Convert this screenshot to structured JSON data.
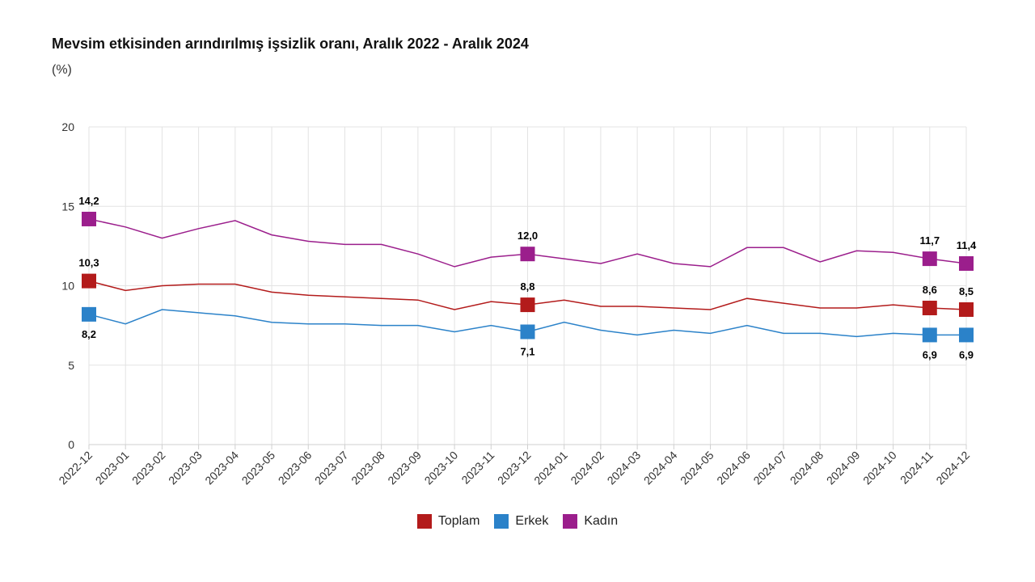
{
  "chart_data": {
    "type": "line",
    "title": "Mevsim etkisinden arındırılmış işsizlik oranı, Aralık 2022 - Aralık 2024",
    "subtitle": "(%)",
    "xlabel": "",
    "ylabel": "",
    "ylim": [
      0,
      20
    ],
    "yticks": [
      0,
      5,
      10,
      15,
      20
    ],
    "grid": true,
    "legend_placement": "bottom-center",
    "categories": [
      "2022-12",
      "2023-01",
      "2023-02",
      "2023-03",
      "2023-04",
      "2023-05",
      "2023-06",
      "2023-07",
      "2023-08",
      "2023-09",
      "2023-10",
      "2023-11",
      "2023-12",
      "2024-01",
      "2024-02",
      "2024-03",
      "2024-04",
      "2024-05",
      "2024-06",
      "2024-07",
      "2024-08",
      "2024-09",
      "2024-10",
      "2024-11",
      "2024-12"
    ],
    "series": [
      {
        "name": "Toplam",
        "color": "#b31b1b",
        "values": [
          10.3,
          9.7,
          10.0,
          10.1,
          10.1,
          9.6,
          9.4,
          9.3,
          9.2,
          9.1,
          8.5,
          9.0,
          8.8,
          9.1,
          8.7,
          8.7,
          8.6,
          8.5,
          9.2,
          8.9,
          8.6,
          8.6,
          8.8,
          8.6,
          8.5
        ],
        "labels": [
          {
            "i": 0,
            "text": "10,3"
          },
          {
            "i": 12,
            "text": "8,8"
          },
          {
            "i": 23,
            "text": "8,6"
          },
          {
            "i": 24,
            "text": "8,5"
          }
        ],
        "label_pos": "above"
      },
      {
        "name": "Erkek",
        "color": "#2b82c9",
        "values": [
          8.2,
          7.6,
          8.5,
          8.3,
          8.1,
          7.7,
          7.6,
          7.6,
          7.5,
          7.5,
          7.1,
          7.5,
          7.1,
          7.7,
          7.2,
          6.9,
          7.2,
          7.0,
          7.5,
          7.0,
          7.0,
          6.8,
          7.0,
          6.9,
          6.9
        ],
        "labels": [
          {
            "i": 0,
            "text": "8,2"
          },
          {
            "i": 12,
            "text": "7,1"
          },
          {
            "i": 23,
            "text": "6,9"
          },
          {
            "i": 24,
            "text": "6,9"
          }
        ],
        "label_pos": "below"
      },
      {
        "name": "Kadın",
        "color": "#9b1e8c",
        "values": [
          14.2,
          13.7,
          13.0,
          13.6,
          14.1,
          13.2,
          12.8,
          12.6,
          12.6,
          12.0,
          11.2,
          11.8,
          12.0,
          11.7,
          11.4,
          12.0,
          11.4,
          11.2,
          12.4,
          12.4,
          11.5,
          12.2,
          12.1,
          11.7,
          11.4
        ],
        "labels": [
          {
            "i": 0,
            "text": "14,2"
          },
          {
            "i": 12,
            "text": "12,0"
          },
          {
            "i": 23,
            "text": "11,7"
          },
          {
            "i": 24,
            "text": "11,4"
          }
        ],
        "label_pos": "above"
      }
    ]
  }
}
